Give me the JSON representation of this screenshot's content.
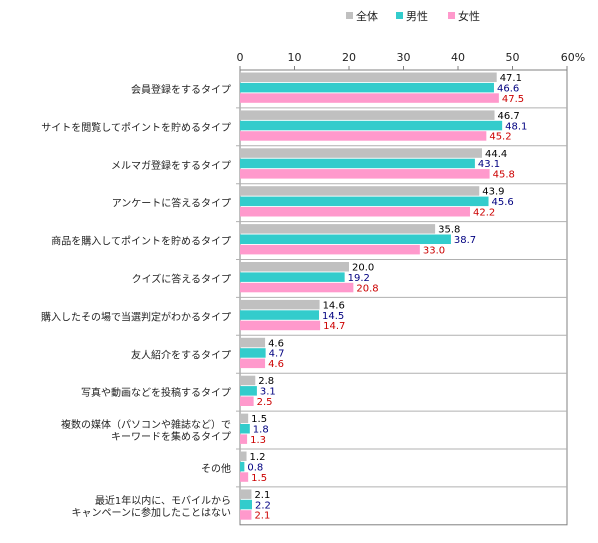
{
  "chart_data": {
    "type": "bar",
    "orientation": "horizontal",
    "title": "",
    "xlabel": "",
    "ylabel": "",
    "xlim": [
      0,
      60
    ],
    "ticks": [
      0,
      10,
      20,
      30,
      40,
      50,
      60
    ],
    "tick_labels": [
      "0",
      "10",
      "20",
      "30",
      "40",
      "50",
      "60%"
    ],
    "legend": {
      "position": "top-right"
    },
    "categories": [
      [
        "会員登録をするタイプ"
      ],
      [
        "サイトを閲覧してポイントを貯めるタイプ"
      ],
      [
        "メルマガ登録をするタイプ"
      ],
      [
        "アンケートに答えるタイプ"
      ],
      [
        "商品を購入してポイントを貯めるタイプ"
      ],
      [
        "クイズに答えるタイプ"
      ],
      [
        "購入したその場で当選判定がわかるタイプ"
      ],
      [
        "友人紹介をするタイプ"
      ],
      [
        "写真や動画などを投稿するタイプ"
      ],
      [
        "複数の媒体（パソコンや雑誌など）で",
        "キーワードを集めるタイプ"
      ],
      [
        "その他"
      ],
      [
        "最近1年以内に、モバイルから",
        "キャンペーンに参加したことはない"
      ]
    ],
    "series": [
      {
        "name": "全体",
        "color": "#c0c0c0",
        "label_color": "#000000",
        "values": [
          47.1,
          46.7,
          44.4,
          43.9,
          35.8,
          20.0,
          14.6,
          4.6,
          2.8,
          1.5,
          1.2,
          2.1
        ],
        "labels": [
          "47.1",
          "46.7",
          "44.4",
          "43.9",
          "35.8",
          "20.0",
          "14.6",
          "4.6",
          "2.8",
          "1.5",
          "1.2",
          "2.1"
        ]
      },
      {
        "name": "男性",
        "color": "#33cccc",
        "label_color": "#000080",
        "values": [
          46.6,
          48.1,
          43.1,
          45.6,
          38.7,
          19.2,
          14.5,
          4.7,
          3.1,
          1.8,
          0.8,
          2.2
        ],
        "labels": [
          "46.6",
          "48.1",
          "43.1",
          "45.6",
          "38.7",
          "19.2",
          "14.5",
          "4.7",
          "3.1",
          "1.8",
          "0.8",
          "2.2"
        ]
      },
      {
        "name": "女性",
        "color": "#ff99cc",
        "label_color": "#cc0000",
        "values": [
          47.5,
          45.2,
          45.8,
          42.2,
          33.0,
          20.8,
          14.7,
          4.6,
          2.5,
          1.3,
          1.5,
          2.1
        ],
        "labels": [
          "47.5",
          "45.2",
          "45.8",
          "42.2",
          "33.0",
          "20.8",
          "14.7",
          "4.6",
          "2.5",
          "1.3",
          "1.5",
          "2.1"
        ]
      }
    ]
  }
}
